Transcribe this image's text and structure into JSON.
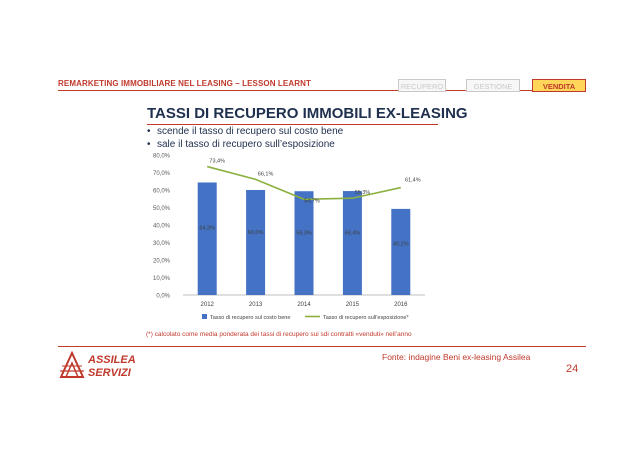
{
  "header": {
    "title": "Remarketing immobiliare nel leasing – Lesson learnt",
    "tabs": [
      {
        "label": "RECUPERO",
        "active": false
      },
      {
        "label": "GESTIONE",
        "active": false
      },
      {
        "label": "VENDITA",
        "active": true
      }
    ]
  },
  "slide": {
    "title": "TASSI DI RECUPERO IMMOBILI EX-LEASING",
    "bullets": [
      "scende il tasso di recupero sul costo bene",
      "sale il tasso di recupero sull’esposizione"
    ],
    "footnote": "(*) calcolato come media ponderata dei tassi di recupero sui sdi contratti «venduti» nell’anno",
    "source": "Fonte: indagine Beni ex-leasing Assilea",
    "page_number": "24"
  },
  "logo": {
    "line1": "ASSILEA",
    "line2": "SERVIZI"
  },
  "colors": {
    "accent": "#c0392b",
    "bar": "#4472c4",
    "line": "#8cb040",
    "title": "#1f2f4e",
    "tab_active_bg": "#ffd65a"
  },
  "chart_data": {
    "type": "bar",
    "categories": [
      "2012",
      "2013",
      "2014",
      "2015",
      "2016"
    ],
    "series": [
      {
        "name": "Tasso di recupero sul costo bene",
        "type": "bar",
        "values": [
          64.3,
          60.0,
          59.3,
          59.4,
          49.2
        ],
        "labels": [
          "64,3%",
          "60,0%",
          "59,3%",
          "59,4%",
          "49,2%"
        ]
      },
      {
        "name": "Tasso di recupero sull’esposizione*",
        "type": "line",
        "values": [
          73.4,
          66.1,
          54.7,
          55.3,
          61.4
        ],
        "labels": [
          "73,4%",
          "66,1%",
          "54,7%",
          "55,3%",
          "61,4%"
        ]
      }
    ],
    "ylim": [
      0,
      80
    ],
    "yticks": [
      "0,0%",
      "10,0%",
      "20,0%",
      "30,0%",
      "40,0%",
      "50,0%",
      "60,0%",
      "70,0%",
      "80,0%"
    ],
    "legend_position": "bottom",
    "grid": false
  }
}
